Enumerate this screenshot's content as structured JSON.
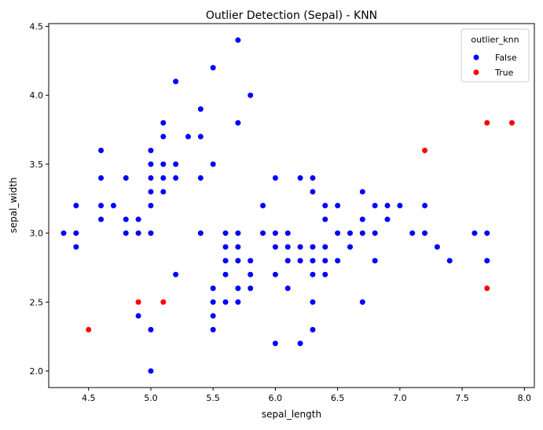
{
  "chart_data": {
    "type": "scatter",
    "title": "Outlier Detection (Sepal) - KNN",
    "xlabel": "sepal_length",
    "ylabel": "sepal_width",
    "xlim": [
      4.18,
      8.08
    ],
    "ylim": [
      1.88,
      4.52
    ],
    "xticks": [
      "4.5",
      "5.0",
      "5.5",
      "6.0",
      "6.5",
      "7.0",
      "7.5",
      "8.0"
    ],
    "yticks": [
      "2.0",
      "2.5",
      "3.0",
      "3.5",
      "4.0",
      "4.5"
    ],
    "grid": false,
    "legend": {
      "title": "outlier_knn",
      "placement": "top-right"
    },
    "series": [
      {
        "name": "False",
        "color": "#0000ff",
        "points": [
          [
            4.3,
            3.0
          ],
          [
            4.4,
            3.2
          ],
          [
            4.4,
            3.0
          ],
          [
            4.4,
            2.9
          ],
          [
            4.6,
            3.6
          ],
          [
            4.6,
            3.4
          ],
          [
            4.6,
            3.2
          ],
          [
            4.6,
            3.1
          ],
          [
            4.7,
            3.2
          ],
          [
            4.8,
            3.4
          ],
          [
            4.8,
            3.1
          ],
          [
            4.8,
            3.0
          ],
          [
            4.9,
            3.1
          ],
          [
            4.9,
            3.0
          ],
          [
            4.9,
            2.4
          ],
          [
            5.0,
            3.6
          ],
          [
            5.0,
            3.5
          ],
          [
            5.0,
            3.4
          ],
          [
            5.0,
            3.3
          ],
          [
            5.0,
            3.2
          ],
          [
            5.0,
            3.0
          ],
          [
            5.0,
            2.3
          ],
          [
            5.0,
            2.0
          ],
          [
            5.1,
            3.8
          ],
          [
            5.1,
            3.7
          ],
          [
            5.1,
            3.5
          ],
          [
            5.1,
            3.4
          ],
          [
            5.1,
            3.3
          ],
          [
            5.2,
            4.1
          ],
          [
            5.2,
            3.5
          ],
          [
            5.2,
            3.4
          ],
          [
            5.2,
            2.7
          ],
          [
            5.3,
            3.7
          ],
          [
            5.4,
            3.9
          ],
          [
            5.4,
            3.7
          ],
          [
            5.4,
            3.4
          ],
          [
            5.4,
            3.0
          ],
          [
            5.5,
            4.2
          ],
          [
            5.5,
            3.5
          ],
          [
            5.5,
            2.6
          ],
          [
            5.5,
            2.5
          ],
          [
            5.5,
            2.4
          ],
          [
            5.5,
            2.3
          ],
          [
            5.6,
            3.0
          ],
          [
            5.6,
            2.9
          ],
          [
            5.6,
            2.8
          ],
          [
            5.6,
            2.7
          ],
          [
            5.6,
            2.5
          ],
          [
            5.7,
            4.4
          ],
          [
            5.7,
            3.8
          ],
          [
            5.7,
            3.0
          ],
          [
            5.7,
            2.9
          ],
          [
            5.7,
            2.8
          ],
          [
            5.7,
            2.6
          ],
          [
            5.7,
            2.5
          ],
          [
            5.8,
            4.0
          ],
          [
            5.8,
            2.8
          ],
          [
            5.8,
            2.7
          ],
          [
            5.8,
            2.6
          ],
          [
            5.9,
            3.2
          ],
          [
            5.9,
            3.0
          ],
          [
            6.0,
            3.4
          ],
          [
            6.0,
            3.0
          ],
          [
            6.0,
            2.9
          ],
          [
            6.0,
            2.7
          ],
          [
            6.0,
            2.2
          ],
          [
            6.1,
            3.0
          ],
          [
            6.1,
            2.9
          ],
          [
            6.1,
            2.8
          ],
          [
            6.1,
            2.6
          ],
          [
            6.2,
            3.4
          ],
          [
            6.2,
            2.9
          ],
          [
            6.2,
            2.8
          ],
          [
            6.2,
            2.2
          ],
          [
            6.3,
            3.4
          ],
          [
            6.3,
            3.3
          ],
          [
            6.3,
            2.9
          ],
          [
            6.3,
            2.8
          ],
          [
            6.3,
            2.7
          ],
          [
            6.3,
            2.5
          ],
          [
            6.3,
            2.3
          ],
          [
            6.4,
            3.2
          ],
          [
            6.4,
            3.1
          ],
          [
            6.4,
            2.9
          ],
          [
            6.4,
            2.8
          ],
          [
            6.4,
            2.7
          ],
          [
            6.5,
            3.2
          ],
          [
            6.5,
            3.0
          ],
          [
            6.5,
            2.8
          ],
          [
            6.6,
            3.0
          ],
          [
            6.6,
            2.9
          ],
          [
            6.7,
            3.3
          ],
          [
            6.7,
            3.1
          ],
          [
            6.7,
            3.0
          ],
          [
            6.7,
            2.5
          ],
          [
            6.8,
            3.2
          ],
          [
            6.8,
            3.0
          ],
          [
            6.8,
            2.8
          ],
          [
            6.9,
            3.2
          ],
          [
            6.9,
            3.1
          ],
          [
            7.0,
            3.2
          ],
          [
            7.1,
            3.0
          ],
          [
            7.2,
            3.2
          ],
          [
            7.2,
            3.0
          ],
          [
            7.3,
            2.9
          ],
          [
            7.4,
            2.8
          ],
          [
            7.6,
            3.0
          ],
          [
            7.7,
            3.0
          ],
          [
            7.7,
            2.8
          ]
        ]
      },
      {
        "name": "True",
        "color": "#ff0000",
        "points": [
          [
            4.5,
            2.3
          ],
          [
            4.9,
            2.5
          ],
          [
            5.1,
            2.5
          ],
          [
            7.2,
            3.6
          ],
          [
            7.7,
            3.8
          ],
          [
            7.9,
            3.8
          ],
          [
            7.7,
            2.6
          ]
        ]
      }
    ]
  }
}
